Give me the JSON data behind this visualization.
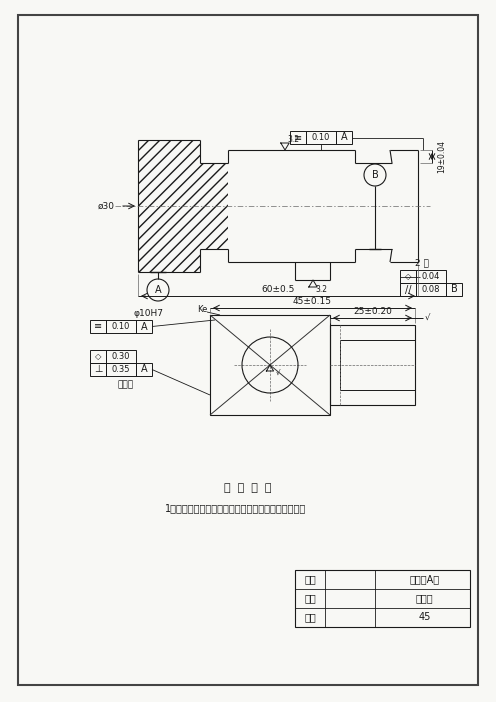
{
  "bg_color": "#f0f0eb",
  "drawing_color": "#1a1a1a",
  "tech_req_title": "技  术  要  求",
  "tech_req_1": "1．螺削圆一次完成，不得修锉，不写核表面粗糙度。",
  "title_block": {
    "fig_no_label": "图号",
    "fig_no_value": "初级工A卷",
    "name_label": "名称",
    "name_value": "联接轴",
    "material_label": "材料",
    "material_value": "45"
  }
}
